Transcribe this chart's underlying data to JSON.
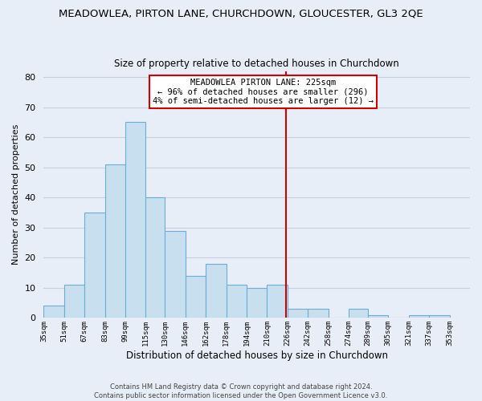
{
  "title": "MEADOWLEA, PIRTON LANE, CHURCHDOWN, GLOUCESTER, GL3 2QE",
  "subtitle": "Size of property relative to detached houses in Churchdown",
  "xlabel": "Distribution of detached houses by size in Churchdown",
  "ylabel": "Number of detached properties",
  "bar_left_edges": [
    35,
    51,
    67,
    83,
    99,
    115,
    130,
    146,
    162,
    178,
    194,
    210,
    226,
    242,
    258,
    274,
    289,
    305,
    321,
    337
  ],
  "bar_heights": [
    4,
    11,
    35,
    51,
    65,
    40,
    29,
    14,
    18,
    11,
    10,
    11,
    3,
    3,
    0,
    3,
    1,
    0,
    1,
    1
  ],
  "bar_widths": [
    16,
    16,
    16,
    16,
    16,
    15,
    16,
    16,
    16,
    16,
    16,
    16,
    16,
    16,
    15,
    15,
    16,
    16,
    16,
    16
  ],
  "bar_color": "#c8dff0",
  "bar_edgecolor": "#6aaed6",
  "vline_x": 225,
  "vline_color": "#cc0000",
  "ylim": [
    0,
    82
  ],
  "yticks": [
    0,
    10,
    20,
    30,
    40,
    50,
    60,
    70,
    80
  ],
  "xlim_left": 35,
  "xlim_right": 369,
  "xtick_labels": [
    "35sqm",
    "51sqm",
    "67sqm",
    "83sqm",
    "99sqm",
    "115sqm",
    "130sqm",
    "146sqm",
    "162sqm",
    "178sqm",
    "194sqm",
    "210sqm",
    "226sqm",
    "242sqm",
    "258sqm",
    "274sqm",
    "289sqm",
    "305sqm",
    "321sqm",
    "337sqm",
    "353sqm"
  ],
  "xtick_positions": [
    35,
    51,
    67,
    83,
    99,
    115,
    130,
    146,
    162,
    178,
    194,
    210,
    226,
    242,
    258,
    274,
    289,
    305,
    321,
    337,
    353
  ],
  "annotation_title": "MEADOWLEA PIRTON LANE: 225sqm",
  "annotation_line1": "← 96% of detached houses are smaller (296)",
  "annotation_line2": "4% of semi-detached houses are larger (12) →",
  "footer1": "Contains HM Land Registry data © Crown copyright and database right 2024.",
  "footer2": "Contains public sector information licensed under the Open Government Licence v3.0.",
  "bg_color": "#e8eef8",
  "grid_color": "#c8d0e0",
  "title_fontsize": 9.5,
  "subtitle_fontsize": 8.5
}
